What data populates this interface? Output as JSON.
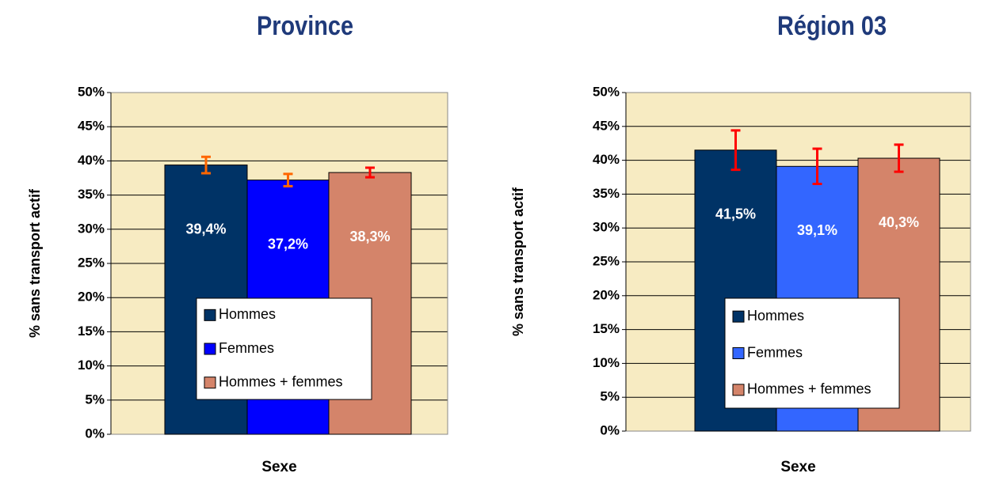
{
  "chart_data": [
    {
      "type": "bar",
      "title": "Province",
      "y_label": "% sans transport actif",
      "x_label": "Sexe",
      "categories": [
        null
      ],
      "series": [
        {
          "name": "Hommes",
          "color": "#003366",
          "values": [
            39.4
          ],
          "value_labels": [
            "39,4%"
          ],
          "errors": [
            1.2
          ],
          "error_color": "#ff6600"
        },
        {
          "name": "Femmes",
          "color": "#0000ff",
          "values": [
            37.2
          ],
          "value_labels": [
            "37,2%"
          ],
          "errors": [
            0.9
          ],
          "error_color": "#ff6600"
        },
        {
          "name": "Hommes + femmes",
          "color": "#d4846a",
          "values": [
            38.3
          ],
          "value_labels": [
            "38,3%"
          ],
          "errors": [
            0.7
          ],
          "error_color": "#ff0000"
        }
      ],
      "ylim": [
        0,
        50
      ],
      "yticks": [
        {
          "value": 0,
          "label": "0%"
        },
        {
          "value": 5,
          "label": "5%"
        },
        {
          "value": 10,
          "label": "10%"
        },
        {
          "value": 15,
          "label": "15%"
        },
        {
          "value": 20,
          "label": "20%"
        },
        {
          "value": 25,
          "label": "25%"
        },
        {
          "value": 30,
          "label": "30%"
        },
        {
          "value": 35,
          "label": "35%"
        },
        {
          "value": 40,
          "label": "40%"
        },
        {
          "value": 45,
          "label": "45%"
        },
        {
          "value": 50,
          "label": "50%"
        }
      ],
      "grid": true,
      "background": "#f7ebc2",
      "legend": "bottom"
    },
    {
      "type": "bar",
      "title": "Région 03",
      "y_label": "% sans transport actif",
      "x_label": "Sexe",
      "categories": [
        null
      ],
      "series": [
        {
          "name": "Hommes",
          "color": "#003366",
          "values": [
            41.5
          ],
          "value_labels": [
            "41,5%"
          ],
          "errors": [
            2.9
          ],
          "error_color": "#ff0000"
        },
        {
          "name": "Femmes",
          "color": "#3366ff",
          "values": [
            39.1
          ],
          "value_labels": [
            "39,1%"
          ],
          "errors": [
            2.6
          ],
          "error_color": "#ff0000"
        },
        {
          "name": "Hommes + femmes",
          "color": "#d4846a",
          "values": [
            40.3
          ],
          "value_labels": [
            "40,3%"
          ],
          "errors": [
            2.0
          ],
          "error_color": "#ff0000"
        }
      ],
      "ylim": [
        0,
        50
      ],
      "yticks": [
        {
          "value": 0,
          "label": "0%"
        },
        {
          "value": 5,
          "label": "5%"
        },
        {
          "value": 10,
          "label": "10%"
        },
        {
          "value": 15,
          "label": "15%"
        },
        {
          "value": 20,
          "label": "20%"
        },
        {
          "value": 25,
          "label": "25%"
        },
        {
          "value": 30,
          "label": "30%"
        },
        {
          "value": 35,
          "label": "35%"
        },
        {
          "value": 40,
          "label": "40%"
        },
        {
          "value": 45,
          "label": "45%"
        },
        {
          "value": 50,
          "label": "50%"
        }
      ],
      "grid": true,
      "background": "#f7ebc2",
      "legend": "bottom"
    }
  ]
}
